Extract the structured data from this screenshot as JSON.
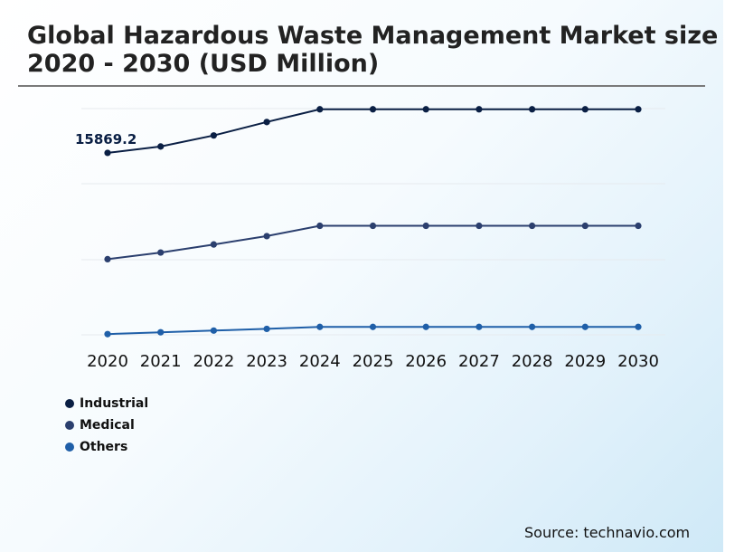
{
  "title_line1": "Global Hazardous Waste Management Market size",
  "title_line2": "2020 - 2030 (USD Million)",
  "source": "Source: technavio.com",
  "colors": {
    "industrial": "#0a1f44",
    "medical": "#2b3f6e",
    "others": "#1f5fa8",
    "grid": "#e6eaee"
  },
  "chart_data": {
    "type": "line",
    "categories": [
      "2020",
      "2021",
      "2022",
      "2023",
      "2024",
      "2025",
      "2026",
      "2027",
      "2028",
      "2029",
      "2030"
    ],
    "series": [
      {
        "name": "Industrial",
        "values": [
          15869.2,
          16320,
          17100,
          18050,
          18950,
          18950,
          18950,
          18950,
          18950,
          18950,
          18950
        ]
      },
      {
        "name": "Medical",
        "values": [
          8350,
          8820,
          9390,
          9980,
          10710,
          10710,
          10710,
          10710,
          10710,
          10710,
          10710
        ]
      },
      {
        "name": "Others",
        "values": [
          3050,
          3180,
          3300,
          3420,
          3560,
          3560,
          3560,
          3560,
          3560,
          3560,
          3560
        ]
      }
    ],
    "annotations": [
      {
        "series": "Industrial",
        "category": "2020",
        "text": "15869.2"
      }
    ],
    "ylim": [
      3000,
      19000
    ],
    "grid": true,
    "legend": "bottom-left",
    "xlabel": "",
    "ylabel": ""
  }
}
